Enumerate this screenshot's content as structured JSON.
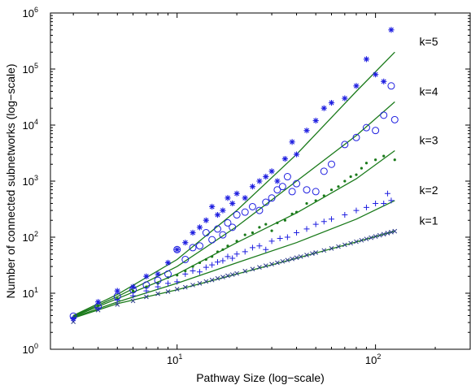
{
  "chart_data": {
    "type": "scatter",
    "xlabel": "Pathway Size (log−scale)",
    "ylabel": "Number of connected subnetworks (log−scale)",
    "x_scale": "log",
    "y_scale": "log",
    "xlim": [
      2.3,
      300
    ],
    "ylim": [
      1,
      1000000
    ],
    "x_ticks": [
      {
        "base": "10",
        "exp": "1",
        "value": 10
      },
      {
        "base": "10",
        "exp": "2",
        "value": 100
      }
    ],
    "y_ticks": [
      {
        "base": "10",
        "exp": "0",
        "value": 1
      },
      {
        "base": "10",
        "exp": "1",
        "value": 10
      },
      {
        "base": "10",
        "exp": "2",
        "value": 100
      },
      {
        "base": "10",
        "exp": "3",
        "value": 1000
      },
      {
        "base": "10",
        "exp": "4",
        "value": 10000
      },
      {
        "base": "10",
        "exp": "5",
        "value": 100000
      },
      {
        "base": "10",
        "exp": "6",
        "value": 1000000
      }
    ],
    "grid": false,
    "colors": {
      "blue": "#1f1fe0",
      "green": "#1a7a1a",
      "navy": "#2a3a8a"
    },
    "curves": [
      {
        "label": "k=1",
        "points": [
          [
            3,
            3.6
          ],
          [
            5,
            6.5
          ],
          [
            10,
            11.5
          ],
          [
            20,
            22
          ],
          [
            40,
            42
          ],
          [
            80,
            82
          ],
          [
            125,
            128
          ]
        ]
      },
      {
        "label": "k=2",
        "points": [
          [
            3,
            3.7
          ],
          [
            5,
            7
          ],
          [
            10,
            15
          ],
          [
            20,
            35
          ],
          [
            40,
            80
          ],
          [
            80,
            210
          ],
          [
            125,
            450
          ]
        ]
      },
      {
        "label": "k=3",
        "points": [
          [
            3,
            3.8
          ],
          [
            5,
            8
          ],
          [
            10,
            22
          ],
          [
            20,
            80
          ],
          [
            40,
            270
          ],
          [
            80,
            1100
          ],
          [
            125,
            3500
          ]
        ]
      },
      {
        "label": "k=4",
        "points": [
          [
            3,
            3.9
          ],
          [
            5,
            8.7
          ],
          [
            10,
            30
          ],
          [
            20,
            155
          ],
          [
            40,
            1000
          ],
          [
            80,
            6500
          ],
          [
            125,
            26000
          ]
        ]
      },
      {
        "label": "k=5",
        "points": [
          [
            3,
            4
          ],
          [
            5,
            9.5
          ],
          [
            10,
            40
          ],
          [
            20,
            300
          ],
          [
            40,
            3000
          ],
          [
            80,
            40000
          ],
          [
            125,
            200000
          ]
        ]
      }
    ],
    "series": [
      {
        "marker": "x",
        "color": "#2a3a8a",
        "points": [
          [
            3,
            3.1
          ],
          [
            4,
            5
          ],
          [
            5,
            6.3
          ],
          [
            6,
            7.3
          ],
          [
            7,
            8.6
          ],
          [
            8,
            9.8
          ],
          [
            9,
            10.7
          ],
          [
            10,
            11.8
          ],
          [
            11,
            12.8
          ],
          [
            12,
            14
          ],
          [
            13,
            15
          ],
          [
            14,
            16.2
          ],
          [
            15,
            17.2
          ],
          [
            16,
            18.4
          ],
          [
            17,
            19.4
          ],
          [
            18,
            20.5
          ],
          [
            19,
            21.5
          ],
          [
            20,
            22.5
          ],
          [
            22,
            24.8
          ],
          [
            24,
            27
          ],
          [
            26,
            29
          ],
          [
            28,
            31
          ],
          [
            30,
            33
          ],
          [
            32,
            35
          ],
          [
            34,
            37
          ],
          [
            36,
            39
          ],
          [
            38,
            41
          ],
          [
            40,
            43
          ],
          [
            42,
            45
          ],
          [
            45,
            48
          ],
          [
            48,
            51
          ],
          [
            50,
            53
          ],
          [
            55,
            58
          ],
          [
            60,
            63
          ],
          [
            65,
            68
          ],
          [
            70,
            73
          ],
          [
            75,
            78
          ],
          [
            80,
            83
          ],
          [
            85,
            88
          ],
          [
            90,
            93
          ],
          [
            95,
            98
          ],
          [
            100,
            103
          ],
          [
            105,
            108
          ],
          [
            110,
            113
          ],
          [
            115,
            118
          ],
          [
            120,
            123
          ],
          [
            125,
            128
          ]
        ]
      },
      {
        "marker": "+",
        "color": "#1f1fe0",
        "points": [
          [
            3,
            3.6
          ],
          [
            4,
            5.5
          ],
          [
            5,
            7.5
          ],
          [
            6,
            9
          ],
          [
            7,
            11
          ],
          [
            8,
            13
          ],
          [
            9,
            15
          ],
          [
            10,
            16
          ],
          [
            11,
            22
          ],
          [
            12,
            25
          ],
          [
            13,
            24
          ],
          [
            14,
            29
          ],
          [
            15,
            32
          ],
          [
            16,
            36
          ],
          [
            17,
            38
          ],
          [
            18,
            45
          ],
          [
            19,
            42
          ],
          [
            20,
            50
          ],
          [
            22,
            55
          ],
          [
            24,
            65
          ],
          [
            26,
            70
          ],
          [
            28,
            60
          ],
          [
            30,
            85
          ],
          [
            33,
            95
          ],
          [
            36,
            100
          ],
          [
            40,
            120
          ],
          [
            45,
            140
          ],
          [
            50,
            170
          ],
          [
            55,
            190
          ],
          [
            60,
            210
          ],
          [
            70,
            250
          ],
          [
            80,
            300
          ],
          [
            90,
            340
          ],
          [
            100,
            400
          ],
          [
            110,
            400
          ],
          [
            115,
            600
          ],
          [
            120,
            450
          ]
        ]
      },
      {
        "marker": "dot",
        "color": "#1a7a1a",
        "points": [
          [
            3,
            3.7
          ],
          [
            4,
            6
          ],
          [
            5,
            8
          ],
          [
            6,
            11
          ],
          [
            7,
            13
          ],
          [
            8,
            15
          ],
          [
            9,
            19
          ],
          [
            10,
            21
          ],
          [
            11,
            25
          ],
          [
            12,
            30
          ],
          [
            13,
            35
          ],
          [
            14,
            40
          ],
          [
            15,
            45
          ],
          [
            16,
            55
          ],
          [
            17,
            60
          ],
          [
            18,
            70
          ],
          [
            20,
            85
          ],
          [
            22,
            110
          ],
          [
            24,
            120
          ],
          [
            26,
            150
          ],
          [
            28,
            170
          ],
          [
            30,
            130
          ],
          [
            32,
            180
          ],
          [
            35,
            200
          ],
          [
            38,
            260
          ],
          [
            40,
            280
          ],
          [
            45,
            400
          ],
          [
            50,
            450
          ],
          [
            55,
            550
          ],
          [
            60,
            700
          ],
          [
            65,
            800
          ],
          [
            70,
            1000
          ],
          [
            75,
            1200
          ],
          [
            80,
            1300
          ],
          [
            85,
            1700
          ],
          [
            90,
            2100
          ],
          [
            100,
            2400
          ],
          [
            110,
            2800
          ],
          [
            125,
            2400
          ]
        ]
      },
      {
        "marker": "o",
        "color": "#1f1fe0",
        "points": [
          [
            3,
            3.9
          ],
          [
            4,
            5.8
          ],
          [
            5,
            8.8
          ],
          [
            6,
            11.5
          ],
          [
            7,
            14
          ],
          [
            8,
            17
          ],
          [
            9,
            22
          ],
          [
            10,
            60
          ],
          [
            11,
            40
          ],
          [
            12,
            65
          ],
          [
            13,
            70
          ],
          [
            14,
            120
          ],
          [
            15,
            90
          ],
          [
            16,
            140
          ],
          [
            17,
            110
          ],
          [
            18,
            180
          ],
          [
            19,
            150
          ],
          [
            20,
            250
          ],
          [
            22,
            280
          ],
          [
            24,
            350
          ],
          [
            26,
            300
          ],
          [
            28,
            420
          ],
          [
            30,
            500
          ],
          [
            32,
            700
          ],
          [
            34,
            800
          ],
          [
            36,
            1200
          ],
          [
            38,
            650
          ],
          [
            40,
            900
          ],
          [
            45,
            700
          ],
          [
            50,
            650
          ],
          [
            55,
            1500
          ],
          [
            60,
            2000
          ],
          [
            70,
            4500
          ],
          [
            80,
            6000
          ],
          [
            90,
            9000
          ],
          [
            100,
            8000
          ],
          [
            110,
            15000
          ],
          [
            120,
            50000
          ],
          [
            125,
            12500
          ]
        ]
      },
      {
        "marker": "*",
        "color": "#1f1fe0",
        "points": [
          [
            3,
            3.5
          ],
          [
            4,
            7
          ],
          [
            5,
            11
          ],
          [
            6,
            13
          ],
          [
            7,
            20
          ],
          [
            8,
            22
          ],
          [
            9,
            35
          ],
          [
            10,
            60
          ],
          [
            11,
            80
          ],
          [
            12,
            120
          ],
          [
            13,
            150
          ],
          [
            14,
            200
          ],
          [
            15,
            350
          ],
          [
            16,
            250
          ],
          [
            17,
            300
          ],
          [
            18,
            500
          ],
          [
            19,
            400
          ],
          [
            20,
            600
          ],
          [
            22,
            500
          ],
          [
            24,
            800
          ],
          [
            26,
            1000
          ],
          [
            28,
            1200
          ],
          [
            30,
            1500
          ],
          [
            32,
            1000
          ],
          [
            35,
            2500
          ],
          [
            38,
            5000
          ],
          [
            40,
            3000
          ],
          [
            45,
            8000
          ],
          [
            50,
            12000
          ],
          [
            55,
            20000
          ],
          [
            60,
            25000
          ],
          [
            70,
            30000
          ],
          [
            80,
            50000
          ],
          [
            90,
            150000
          ],
          [
            100,
            80000
          ],
          [
            110,
            60000
          ],
          [
            120,
            500000
          ]
        ]
      }
    ]
  }
}
